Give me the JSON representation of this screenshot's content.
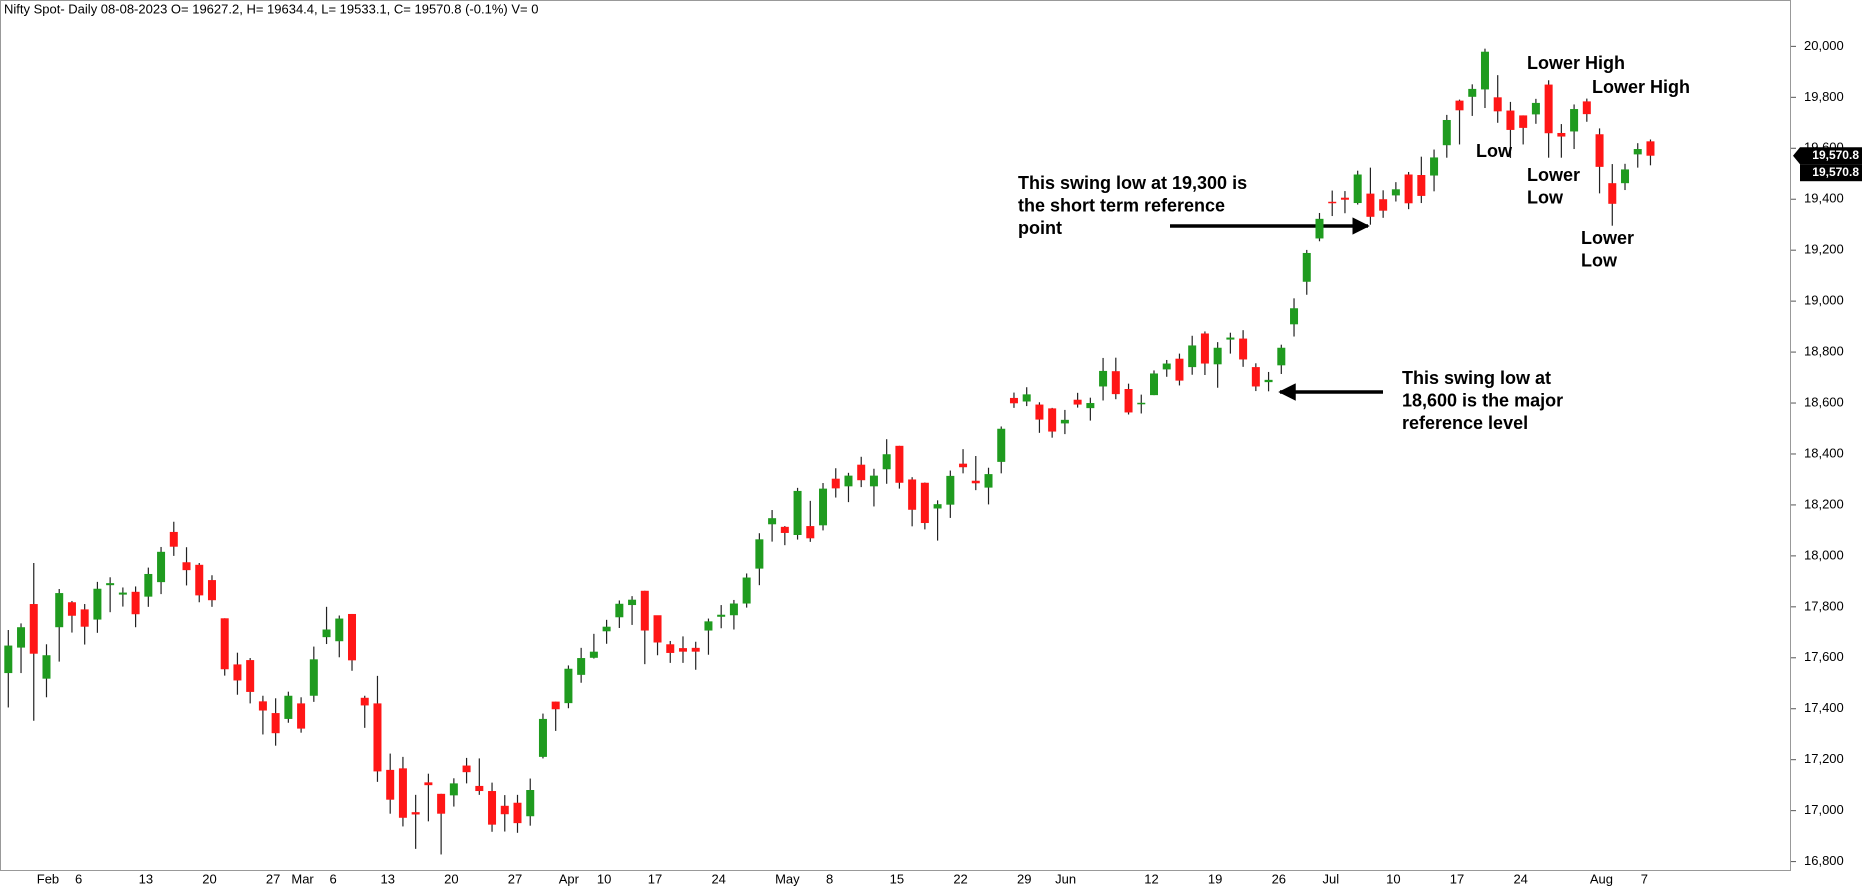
{
  "chart_data": {
    "type": "candlestick",
    "title": "Nifty Spot- Daily 08-08-2023 O= 19627.2, H= 19634.4, L= 19533.1, C= 19570.8 (-0.1%) V= 0",
    "categories": [
      null,
      null,
      "Feb",
      null,
      null,
      "6",
      null,
      null,
      null,
      null,
      "13",
      null,
      null,
      null,
      null,
      "20",
      null,
      null,
      null,
      null,
      "27",
      null,
      "Mar",
      null,
      null,
      "6",
      null,
      null,
      null,
      "13",
      null,
      null,
      null,
      null,
      "20",
      null,
      null,
      null,
      null,
      "27",
      null,
      null,
      null,
      "Apr",
      null,
      null,
      "10",
      null,
      null,
      null,
      "17",
      null,
      null,
      null,
      null,
      "24",
      null,
      null,
      null,
      null,
      "May",
      null,
      null,
      null,
      "8",
      null,
      null,
      null,
      null,
      "15",
      null,
      null,
      null,
      null,
      "22",
      null,
      null,
      null,
      null,
      "29",
      null,
      null,
      "Jun",
      null,
      null,
      null,
      null,
      null,
      null,
      "12",
      null,
      null,
      null,
      null,
      "19",
      null,
      null,
      null,
      null,
      "26",
      null,
      null,
      null,
      "Jul",
      null,
      null,
      null,
      null,
      "10",
      null,
      null,
      null,
      null,
      "17",
      null,
      null,
      null,
      null,
      "24",
      null,
      null,
      null,
      null,
      null,
      "Aug",
      null,
      null,
      null,
      "7",
      null
    ],
    "open": [
      17540,
      17640,
      17811,
      17518,
      17720,
      17818,
      17790,
      17750,
      17885,
      17848,
      17859,
      17840,
      17897,
      18094,
      17975,
      17965,
      17905,
      17755,
      17574,
      17591,
      17429,
      17383,
      17360,
      17421,
      17451,
      17681,
      17665,
      17772,
      17443,
      17421,
      17160,
      17166,
      16994,
      17111,
      17066,
      17060,
      17177,
      17097,
      17077,
      17019,
      17031,
      16978,
      17211,
      17428,
      17422,
      17533,
      17600,
      17704,
      17759,
      17807,
      17863,
      17767,
      17653,
      17638,
      17639,
      17707,
      17761,
      17767,
      17813,
      17950,
      18124,
      18114,
      18082,
      18117,
      18120,
      18303,
      18273,
      18358,
      18273,
      18340,
      18432,
      18300,
      18287,
      18186,
      18201,
      18362,
      18295,
      18268,
      18369,
      18620,
      18606,
      18594,
      18579,
      18520,
      18613,
      18580,
      18665,
      18725,
      18655,
      18595,
      18631,
      18732,
      18774,
      18741,
      18873,
      18752,
      18849,
      18853,
      18741,
      18682,
      18748,
      18909,
      19076,
      19246,
      19390,
      19406,
      19385,
      19422,
      19400,
      19415,
      19497,
      19495,
      19493,
      19612,
      19787,
      19802,
      19831,
      19800,
      19748,
      19729,
      19733,
      19850,
      19660,
      19666,
      19784,
      19655,
      19463,
      19463,
      19576,
      19627.2
    ],
    "high": [
      17709,
      17735,
      17972,
      17653,
      17870,
      17823,
      17811,
      17898,
      17916,
      17876,
      17880,
      17954,
      18035,
      18134,
      18034,
      17972,
      17924,
      17755,
      17620,
      17599,
      17451,
      17441,
      17467,
      17445,
      17644,
      17800,
      17766,
      17772,
      17451,
      17529,
      17224,
      17211,
      17062,
      17145,
      17066,
      17127,
      17207,
      17205,
      17110,
      17061,
      17062,
      17126,
      17381,
      17428,
      17570,
      17639,
      17694,
      17749,
      17825,
      17842,
      17863,
      17766,
      17666,
      17684,
      17663,
      17754,
      17807,
      17827,
      17931,
      18089,
      18180,
      18117,
      18267,
      18216,
      18286,
      18344,
      18326,
      18389,
      18342,
      18458,
      18432,
      18309,
      18288,
      18218,
      18335,
      18419,
      18392,
      18346,
      18508,
      18641,
      18662,
      18603,
      18581,
      18573,
      18640,
      18621,
      18777,
      18778,
      18676,
      18633,
      18728,
      18769,
      18794,
      18864,
      18881,
      18839,
      18876,
      18886,
      18756,
      18722,
      18829,
      19011,
      19201,
      19346,
      19434,
      19432,
      19512,
      19524,
      19435,
      19467,
      19507,
      19567,
      19595,
      19731,
      19791,
      19851,
      19991,
      19887,
      19782,
      19729,
      19794,
      19867,
      19695,
      19772,
      19795,
      19678,
      19538,
      19539,
      19620,
      19634.4
    ],
    "low": [
      17405,
      17540,
      17353,
      17445,
      17585,
      17699,
      17652,
      17698,
      17779,
      17801,
      17720,
      17800,
      17850,
      18000,
      17884,
      17818,
      17800,
      17530,
      17455,
      17421,
      17299,
      17255,
      17345,
      17306,
      17427,
      17654,
      17602,
      17549,
      17325,
      17113,
      16988,
      16938,
      16850,
      16958,
      16828,
      17016,
      17107,
      17062,
      16917,
      16918,
      16913,
      16941,
      17205,
      17313,
      17402,
      17502,
      17597,
      17655,
      17717,
      17729,
      17575,
      17610,
      17580,
      17580,
      17553,
      17612,
      17716,
      17711,
      17797,
      17885,
      18056,
      18042,
      18064,
      18055,
      18100,
      18229,
      18211,
      18270,
      18194,
      18283,
      18264,
      18116,
      18104,
      18060,
      18149,
      18324,
      18258,
      18202,
      18324,
      18581,
      18588,
      18483,
      18464,
      18478,
      18582,
      18531,
      18610,
      18615,
      18555,
      18559,
      18631,
      18703,
      18669,
      18711,
      18710,
      18660,
      18794,
      18742,
      18647,
      18646,
      18714,
      18861,
      19025,
      19235,
      19334,
      19345,
      19379,
      19300,
      19327,
      19391,
      19361,
      19385,
      19431,
      19563,
      19615,
      19727,
      19758,
      19700,
      19562,
      19615,
      19696,
      19563,
      19563,
      19597,
      19704,
      19423,
      19296,
      19436,
      19524,
      19533.1
    ],
    "close": [
      17648,
      17720,
      17616,
      17610,
      17854,
      17765,
      17722,
      17871,
      17893,
      17856,
      17771,
      17929,
      18016,
      18036,
      17944,
      17845,
      17826,
      17555,
      17511,
      17466,
      17393,
      17304,
      17451,
      17322,
      17594,
      17711,
      17754,
      17590,
      17413,
      17154,
      17043,
      16972,
      16985,
      17100,
      16988,
      17107,
      17151,
      17077,
      16945,
      16986,
      16951,
      17081,
      17360,
      17398,
      17557,
      17599,
      17624,
      17722,
      17812,
      17828,
      17707,
      17660,
      17619,
      17624,
      17624,
      17743,
      17769,
      17813,
      17915,
      18065,
      18148,
      18090,
      18255,
      18069,
      18264,
      18265,
      18315,
      18297,
      18315,
      18399,
      18287,
      18181,
      18129,
      18203,
      18314,
      18348,
      18285,
      18321,
      18499,
      18599,
      18634,
      18535,
      18488,
      18534,
      18594,
      18600,
      18726,
      18635,
      18563,
      18601,
      18716,
      18755,
      18688,
      18826,
      18755,
      18817,
      18857,
      18771,
      18665,
      18691,
      18817,
      18972,
      19189,
      19323,
      19389,
      19398,
      19497,
      19331,
      19355,
      19439,
      19384,
      19413,
      19564,
      19711,
      19749,
      19833,
      19979,
      19745,
      19672,
      19680,
      19778,
      19659,
      19646,
      19754,
      19734,
      19527,
      19382,
      19517,
      19597,
      19570.8
    ],
    "up_color": "#1f9b1f",
    "down_color": "#ff1616",
    "wick_color": "#222222",
    "ylim": [
      16767,
      20182
    ],
    "yticks": [
      {
        "value": 16800,
        "label": "16,800"
      },
      {
        "value": 17000,
        "label": "17,000"
      },
      {
        "value": 17200,
        "label": "17,200"
      },
      {
        "value": 17400,
        "label": "17,400"
      },
      {
        "value": 17600,
        "label": "17,600"
      },
      {
        "value": 17800,
        "label": "17,800"
      },
      {
        "value": 18000,
        "label": "18,000"
      },
      {
        "value": 18200,
        "label": "18,200"
      },
      {
        "value": 18400,
        "label": "18,400"
      },
      {
        "value": 18600,
        "label": "18,600"
      },
      {
        "value": 18800,
        "label": "18,800"
      },
      {
        "value": 19000,
        "label": "19,000"
      },
      {
        "value": 19200,
        "label": "19,200"
      },
      {
        "value": 19400,
        "label": "19,400"
      },
      {
        "value": 19600,
        "label": "19,600"
      },
      {
        "value": 19800,
        "label": "19,800"
      },
      {
        "value": 20000,
        "label": "20,000"
      }
    ],
    "grid": false,
    "price_tags": [
      {
        "value": 19570.8,
        "label": "19,570.8"
      },
      {
        "value": 19570.8,
        "label": "19,570.8"
      }
    ],
    "annotations": [
      {
        "lines": [
          "This swing low at 19,300 is",
          "the short term reference",
          "point"
        ]
      },
      {
        "lines": [
          "This swing low at",
          "18,600 is the major",
          "reference level"
        ]
      },
      {
        "lines": [
          "Lower High"
        ]
      },
      {
        "lines": [
          "Lower High"
        ]
      },
      {
        "lines": [
          "Low"
        ]
      },
      {
        "lines": [
          "Lower",
          "Low"
        ]
      },
      {
        "lines": [
          "Lower",
          "Low"
        ]
      }
    ]
  }
}
